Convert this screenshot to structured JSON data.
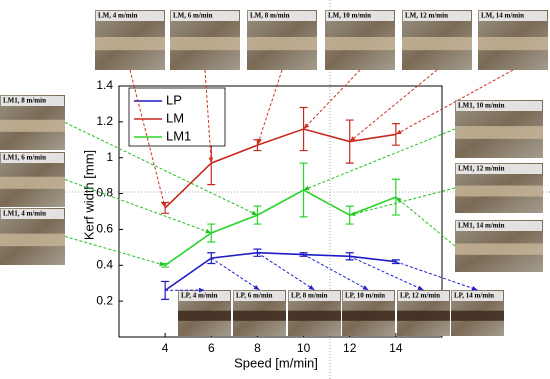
{
  "chart_data": {
    "type": "line",
    "x_label": "Speed [m/min]",
    "y_label": "Kerf width [mm]",
    "x": [
      4,
      6,
      8,
      10,
      12,
      14
    ],
    "series": [
      {
        "name": "LP",
        "color": "#1c1cc4",
        "values": [
          0.26,
          0.44,
          0.47,
          0.46,
          0.45,
          0.42
        ],
        "errors": [
          0.05,
          0.03,
          0.02,
          0.01,
          0.02,
          0.01
        ]
      },
      {
        "name": "LM",
        "color": "#c8281e",
        "values": [
          0.72,
          0.97,
          1.07,
          1.16,
          1.09,
          1.13
        ],
        "errors": [
          0.03,
          0.12,
          0.03,
          0.12,
          0.12,
          0.06
        ]
      },
      {
        "name": "LM1",
        "color": "#2bd42b",
        "values": [
          0.4,
          0.58,
          0.68,
          0.82,
          0.68,
          0.78
        ],
        "errors": [
          0.01,
          0.05,
          0.05,
          0.15,
          0.05,
          0.1
        ]
      }
    ],
    "xlim": [
      2,
      16
    ],
    "xticks": [
      4,
      6,
      8,
      10,
      12,
      14
    ],
    "ylim": [
      0,
      1.4
    ],
    "yticks": [
      0.2,
      0.4,
      0.6,
      {
        "value": 0.8,
        "label": "0.8"
      },
      1,
      1.2,
      1.4
    ],
    "grid": false,
    "legend": "upper left"
  },
  "photos": {
    "top": [
      "LM, 4 m/min",
      "LM, 6 m/min",
      "LM, 8 m/min",
      "LM, 10 m/min",
      "LM, 12 m/min",
      "LM, 14 m/min"
    ],
    "left": [
      "LM1, 8 m/min",
      "LM1, 6 m/min",
      "LM1, 4 m/min"
    ],
    "right": [
      "LM1, 10 m/min",
      "LM1, 12 m/min",
      "LM1, 14 m/min"
    ],
    "bottom": [
      "LP, 4 m/min",
      "LP, 6 m/min",
      "LP, 8 m/min",
      "LP, 10 m/min",
      "LP, 12 m/min",
      "LP, 14 m/min"
    ]
  }
}
